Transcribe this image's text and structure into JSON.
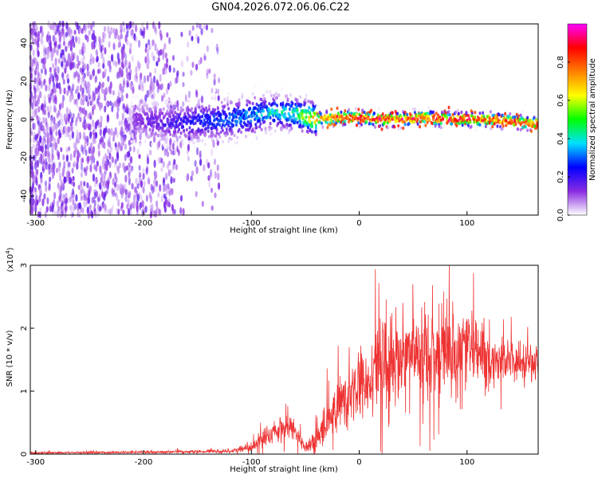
{
  "title": "GN04.2026.072.06.06.C22",
  "chart_data": [
    {
      "type": "heatmap",
      "xlabel": "Height of straight line (km)",
      "ylabel": "Frequency (Hz)",
      "xlim": [
        -305,
        166
      ],
      "ylim": [
        -50,
        50
      ],
      "xticks": [
        -300,
        -200,
        -100,
        0,
        100
      ],
      "xtick_labels": [
        "-300",
        "-200",
        "-100",
        "0",
        "100"
      ],
      "yticks": [
        -40,
        -20,
        0,
        20,
        40
      ],
      "ytick_labels": [
        "-40",
        "-20",
        "0",
        "20",
        "40"
      ],
      "colorbar": {
        "label": "Normalized spectral amplitude",
        "range": [
          0,
          1
        ],
        "ticks": [
          0.0,
          0.2,
          0.4,
          0.6,
          0.8
        ],
        "tick_labels": [
          "0.0",
          "0.2",
          "0.4",
          "0.6",
          "0.8"
        ],
        "colormap": [
          "#ffffff",
          "#8a2be2",
          "#0000ff",
          "#00e0ff",
          "#00ff00",
          "#ffff00",
          "#ff8000",
          "#ff0000",
          "#ff00ff"
        ]
      },
      "description_values": {
        "noise_region_km": [
          -305,
          -140
        ],
        "signal_ridge_points": [
          [
            -210,
            0,
            0.12
          ],
          [
            -180,
            -2,
            0.18
          ],
          [
            -150,
            -1,
            0.25
          ],
          [
            -120,
            0,
            0.3
          ],
          [
            -100,
            2,
            0.35
          ],
          [
            -80,
            4,
            0.4
          ],
          [
            -60,
            3,
            0.45
          ],
          [
            -40,
            0,
            0.7
          ],
          [
            -20,
            1,
            0.85
          ],
          [
            0,
            1,
            0.88
          ],
          [
            20,
            0,
            0.88
          ],
          [
            40,
            0,
            0.85
          ],
          [
            60,
            1,
            0.86
          ],
          [
            80,
            0,
            0.87
          ],
          [
            100,
            0,
            0.85
          ],
          [
            120,
            0,
            0.86
          ],
          [
            140,
            -1,
            0.85
          ],
          [
            160,
            -2,
            0.84
          ]
        ]
      }
    },
    {
      "type": "line",
      "xlabel": "Height of straight line (km)",
      "ylabel": "SNR (10 * v/v)",
      "y_multiplier": "(x10",
      "y_multiplier_exp": "4",
      "y_multiplier_close": ")",
      "xlim": [
        -305,
        166
      ],
      "ylim": [
        0,
        3
      ],
      "xticks": [
        -300,
        -200,
        -100,
        0,
        100
      ],
      "xtick_labels": [
        "-300",
        "-200",
        "-100",
        "0",
        "100"
      ],
      "yticks": [
        0,
        1,
        2,
        3
      ],
      "ytick_labels": [
        "0",
        "1",
        "2",
        "3"
      ],
      "color": "#ee3333",
      "envelope": {
        "x": [
          -305,
          -200,
          -150,
          -120,
          -100,
          -85,
          -70,
          -60,
          -50,
          -40,
          -30,
          -20,
          -10,
          0,
          10,
          20,
          30,
          40,
          50,
          60,
          70,
          80,
          90,
          100,
          110,
          120,
          130,
          140,
          150,
          166
        ],
        "mean": [
          0.02,
          0.03,
          0.04,
          0.05,
          0.1,
          0.3,
          0.45,
          0.35,
          0.1,
          0.25,
          0.5,
          0.75,
          0.95,
          1.1,
          1.3,
          1.4,
          1.5,
          1.55,
          1.6,
          1.6,
          1.55,
          1.6,
          1.65,
          1.7,
          1.6,
          1.55,
          1.5,
          1.5,
          1.45,
          1.45
        ],
        "amp": [
          0.02,
          0.02,
          0.03,
          0.04,
          0.08,
          0.2,
          0.25,
          0.2,
          0.08,
          0.3,
          0.4,
          0.5,
          0.6,
          0.6,
          0.7,
          0.75,
          0.8,
          0.8,
          0.9,
          0.85,
          0.75,
          0.7,
          0.75,
          0.8,
          0.6,
          0.55,
          0.45,
          0.35,
          0.3,
          0.3
        ]
      }
    }
  ]
}
